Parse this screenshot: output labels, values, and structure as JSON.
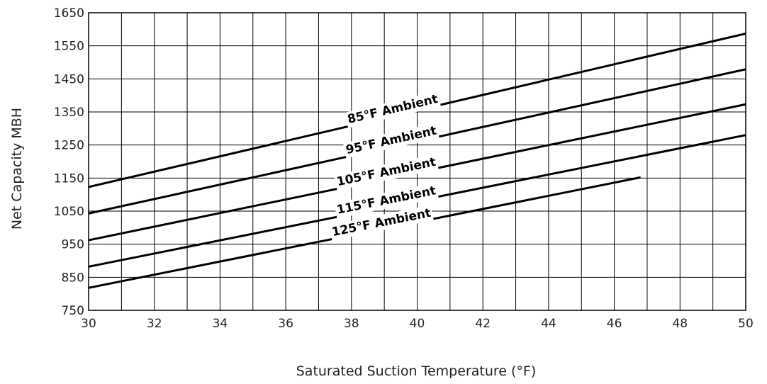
{
  "chart_data": {
    "type": "line",
    "title": "",
    "xlabel": "Saturated Suction Temperature (°F)",
    "ylabel": "Net Capacity MBH",
    "xlim": [
      30,
      50
    ],
    "ylim": [
      750,
      1650
    ],
    "xticks": [
      30,
      32,
      34,
      36,
      38,
      40,
      42,
      44,
      46,
      48,
      50
    ],
    "yticks": [
      750,
      850,
      950,
      1050,
      1150,
      1250,
      1350,
      1450,
      1550,
      1650
    ],
    "x_gridlines": [
      30,
      31,
      32,
      33,
      34,
      35,
      36,
      37,
      38,
      39,
      40,
      41,
      42,
      43,
      44,
      45,
      46,
      47,
      48,
      49,
      50
    ],
    "y_gridlines": [
      750,
      850,
      950,
      1050,
      1150,
      1250,
      1350,
      1450,
      1550,
      1650
    ],
    "grid": true,
    "legend": "none",
    "series": [
      {
        "name": "85°F Ambient",
        "x": [
          30,
          50
        ],
        "y": [
          1123,
          1587
        ]
      },
      {
        "name": "95°F Ambient",
        "x": [
          30,
          50
        ],
        "y": [
          1043,
          1479
        ]
      },
      {
        "name": "105°F Ambient",
        "x": [
          30,
          50
        ],
        "y": [
          962,
          1373
        ]
      },
      {
        "name": "115°F Ambient",
        "x": [
          30,
          50
        ],
        "y": [
          882,
          1280
        ]
      },
      {
        "name": "125°F Ambient",
        "x": [
          30,
          46.8
        ],
        "y": [
          818,
          1152
        ]
      }
    ]
  }
}
